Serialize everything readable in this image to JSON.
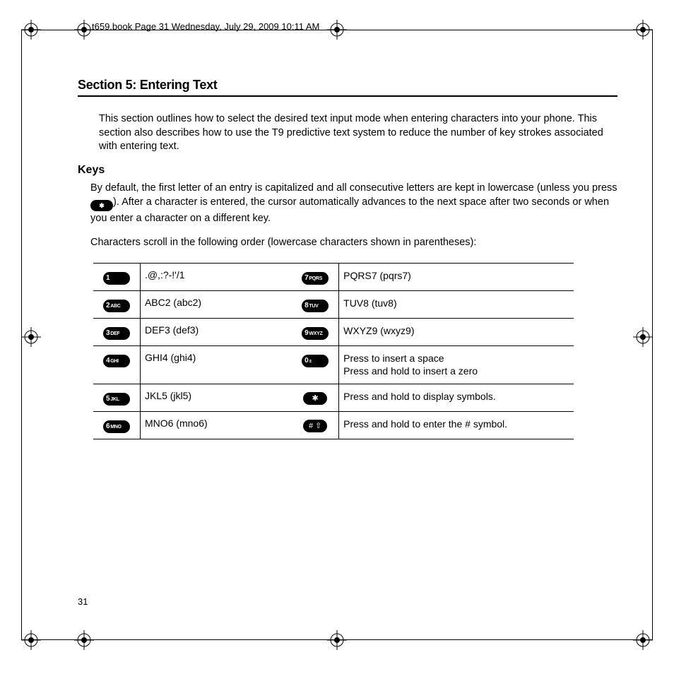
{
  "header_text": "t659.book  Page 31  Wednesday, July 29, 2009  10:11 AM",
  "section_title": "Section 5: Entering Text",
  "intro": "This section outlines how to select the desired text input mode when entering characters into your phone. This section also describes how to use the T9 predictive text system to reduce the number of key strokes associated with entering text.",
  "subhead_keys": "Keys",
  "para1a": "By default, the first letter of an entry is capitalized and all consecutive letters are kept in lowercase (unless you press ",
  "para1b": "). After a character is entered, the cursor automatically advances to the next space after two seconds or when you enter a character on a different key.",
  "inline_key_label": "✱",
  "para2": "Characters scroll in the following order (lowercase characters shown in parentheses):",
  "keys_left": [
    {
      "label": "1",
      "letters": "",
      "text": " .@,:?-!'/1"
    },
    {
      "label": "2",
      "letters": "ABC",
      "text": "ABC2 (abc2)"
    },
    {
      "label": "3",
      "letters": "DEF",
      "text": "DEF3 (def3)"
    },
    {
      "label": "4",
      "letters": "GHI",
      "text": "GHI4 (ghi4)"
    },
    {
      "label": "5",
      "letters": "JKL",
      "text": "JKL5 (jkl5)"
    },
    {
      "label": "6",
      "letters": "MNO",
      "text": "MNO6 (mno6)"
    }
  ],
  "keys_right": [
    {
      "label": "7",
      "letters": "PQRS",
      "text": "PQRS7 (pqrs7)"
    },
    {
      "label": "8",
      "letters": "TUV",
      "text": "TUV8 (tuv8)"
    },
    {
      "label": "9",
      "letters": "WXYZ",
      "text": " WXYZ9 (wxyz9)"
    },
    {
      "label": "0",
      "letters": "±",
      "text": "Press to insert a space\nPress and hold to insert a zero"
    },
    {
      "label": "✱",
      "letters": "",
      "text": " Press and hold to display symbols."
    },
    {
      "label": "#",
      "letters": "⇧",
      "text": "Press and hold to enter the # symbol."
    }
  ],
  "page_number": "31",
  "colors": {
    "text": "#000000",
    "background": "#ffffff",
    "rule": "#000000",
    "key_fill": "#000000",
    "key_text": "#ffffff"
  }
}
